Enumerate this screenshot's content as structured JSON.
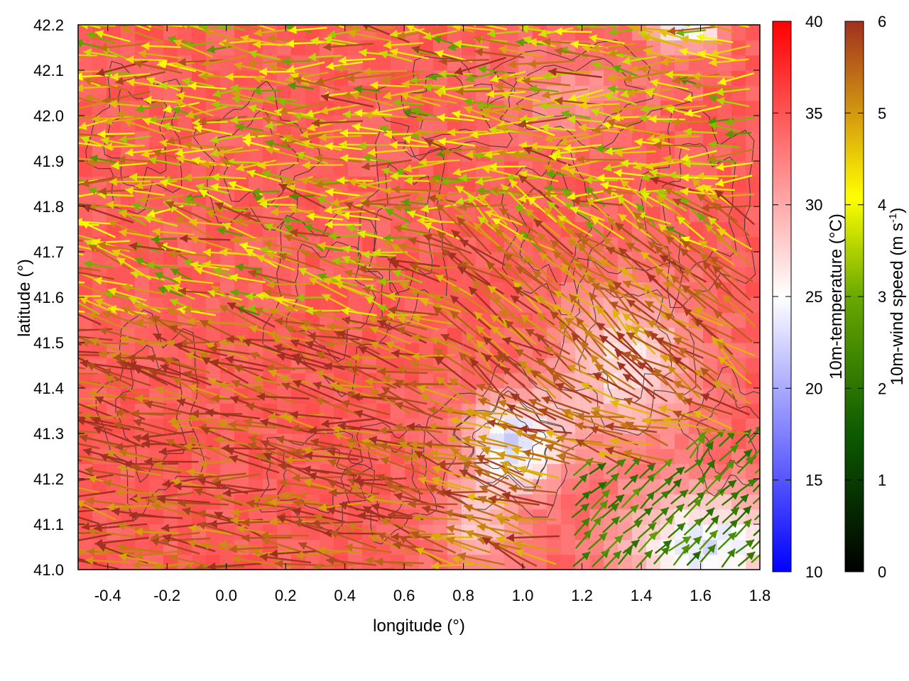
{
  "chart_data": {
    "type": "heatmap",
    "title": "",
    "xlabel": "longitude (°)",
    "ylabel": "latitude (°)",
    "xlim": [
      -0.5,
      1.8
    ],
    "ylim": [
      41.0,
      42.2
    ],
    "x_ticks": [
      "-0.4",
      "-0.2",
      "0.0",
      "0.2",
      "0.4",
      "0.6",
      "0.8",
      "1.0",
      "1.2",
      "1.4",
      "1.6",
      "1.8"
    ],
    "y_ticks": [
      "41.0",
      "41.1",
      "41.2",
      "41.3",
      "41.4",
      "41.5",
      "41.6",
      "41.7",
      "41.8",
      "41.9",
      "42.0",
      "42.1",
      "42.2"
    ],
    "temperature_colorbar": {
      "label": "10m-temperature (°C)",
      "range": [
        10,
        40
      ],
      "ticks": [
        "10",
        "15",
        "20",
        "25",
        "30",
        "35",
        "40"
      ],
      "colors": [
        "#0000ff",
        "#ffffff",
        "#ff0000"
      ]
    },
    "wind_colorbar": {
      "label_main": "10m-wind speed (m s",
      "label_sup": "-1",
      "label_end": ")",
      "range": [
        0,
        6
      ],
      "ticks": [
        "0",
        "1",
        "2",
        "3",
        "4",
        "5",
        "6"
      ],
      "colors": [
        "#000000",
        "#1a6b00",
        "#8db800",
        "#ffff00",
        "#d49a10",
        "#a03020"
      ]
    },
    "overlays": [
      "10m-temperature field (shaded)",
      "terrain contours",
      "10m-wind vectors colored by speed"
    ],
    "grid": true
  }
}
